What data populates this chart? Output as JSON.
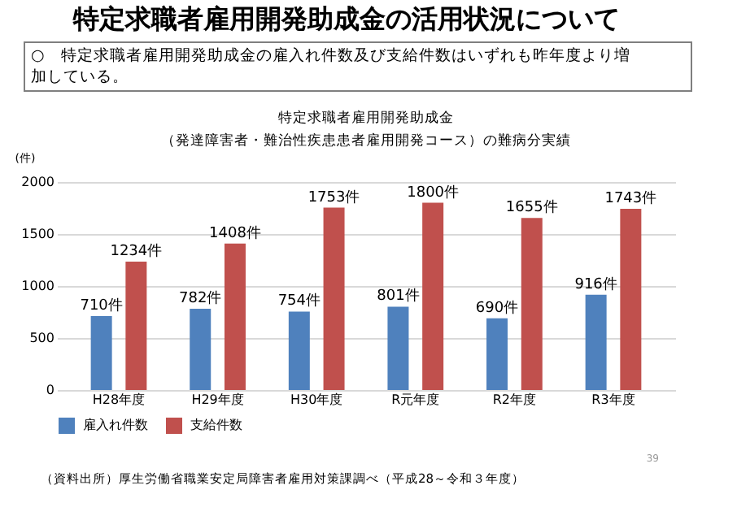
{
  "chart_data": {
    "type": "bar",
    "title": "特定求職者雇用開発助成金の活用状況について",
    "subtitle": "特定求職者雇用開発助成金（発達障害者・難治性疾患患者雇用開発コース）の難病分実績",
    "ylabel": "(件)",
    "categories": [
      "H28年度",
      "H29年度",
      "H30年度",
      "R元年度",
      "R2年度",
      "R3年度"
    ],
    "series": [
      {
        "name": "雇入れ件数",
        "color": "#4f81bd",
        "values": [
          710,
          782,
          754,
          801,
          690,
          916
        ],
        "value_labels": [
          "710件",
          "782件",
          "754件",
          "801件",
          "690件",
          "916件"
        ]
      },
      {
        "name": "支給件数",
        "color": "#c0504d",
        "values": [
          1234,
          1408,
          1753,
          1800,
          1655,
          1743
        ],
        "value_labels": [
          "1234件",
          "1408件",
          "1753件",
          "1800件",
          "1655件",
          "1743件"
        ]
      }
    ],
    "ylim": [
      0,
      2000
    ],
    "yticks": [
      0,
      500,
      1000,
      1500,
      2000
    ],
    "grid": "y",
    "legend": "bottom",
    "annotations": [
      "○　特定求職者雇用開発助成金の雇入れ件数及び支給件数はいずれも昨年度より増加している。",
      "39",
      "（資料出所）厚生労働省職業安定局障害者雇用対策課調べ（平成28～令和３年度）"
    ]
  }
}
